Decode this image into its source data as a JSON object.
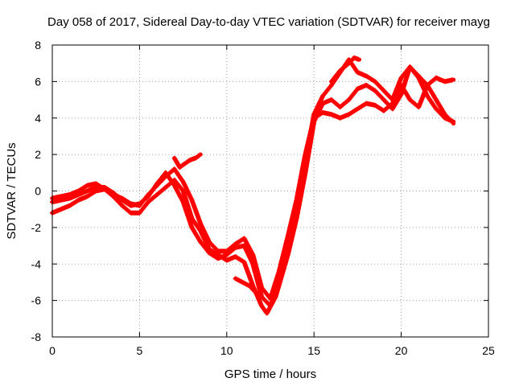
{
  "chart_data": {
    "type": "line",
    "title": "Day 058 of 2017, Sidereal Day-to-day VTEC variation (SDTVAR) for receiver mayg",
    "xlabel": "GPS time / hours",
    "ylabel": "SDTVAR / TECUs",
    "xlim": [
      0,
      25
    ],
    "ylim": [
      -8,
      8
    ],
    "xticks": [
      0,
      5,
      10,
      15,
      20,
      25
    ],
    "yticks": [
      -8,
      -6,
      -4,
      -2,
      0,
      2,
      4,
      6,
      8
    ],
    "grid": true,
    "color": "#ff0000",
    "marker": "plus",
    "series": [
      {
        "x": [
          0,
          0.5,
          1,
          1.5,
          2,
          2.5,
          3,
          3.5,
          4,
          4.5,
          5,
          5.5,
          6,
          6.5,
          7,
          7.5,
          8,
          8.5,
          9,
          9.5,
          10,
          10.5,
          11,
          11.5,
          12,
          12.3,
          12.8,
          13.5,
          14,
          14.5,
          15,
          15.5,
          16,
          16.5,
          17,
          17.5,
          18,
          18.5,
          19,
          19.5,
          20,
          20.5,
          21,
          21.5,
          22,
          22.5,
          23
        ],
        "y": [
          -1.2,
          -1,
          -0.8,
          -0.5,
          -0.3,
          0,
          0.1,
          -0.3,
          -0.8,
          -1.2,
          -1.2,
          -0.6,
          -0.2,
          0.2,
          0.6,
          0,
          -1.5,
          -2.2,
          -3.2,
          -3.5,
          -3.8,
          -3.6,
          -3.9,
          -5.2,
          -6.3,
          -6.7,
          -5.8,
          -3.5,
          -1.5,
          1,
          3.8,
          4.8,
          5,
          4.6,
          5,
          5.6,
          5.8,
          5.5,
          5,
          4.5,
          5.3,
          6.8,
          6.3,
          5.8,
          5,
          4.2,
          3.7
        ]
      },
      {
        "x": [
          0,
          0.5,
          1,
          1.5,
          2,
          2.5,
          3,
          3.5,
          4,
          4.5,
          5,
          5.5,
          6,
          6.5,
          7,
          7.5,
          8,
          8.5,
          9,
          9.5,
          10,
          10.5,
          11,
          11.5,
          12,
          12.5,
          13,
          13.5,
          14,
          14.5,
          15,
          15.5,
          16,
          16.5,
          17,
          17.5,
          18,
          18.5,
          19,
          19.5,
          20,
          20.5,
          21,
          21.5,
          22,
          22.5,
          23
        ],
        "y": [
          -0.6,
          -0.5,
          -0.4,
          -0.2,
          0,
          0.2,
          0.2,
          -0.1,
          -0.5,
          -0.8,
          -0.7,
          -0.3,
          0.4,
          1,
          0.3,
          -0.6,
          -2,
          -2.8,
          -3.4,
          -3.7,
          -3.5,
          -3.1,
          -3,
          -4,
          -5.8,
          -6.3,
          -5,
          -3.2,
          -1,
          1.5,
          4.2,
          5.2,
          5.8,
          6.5,
          7.2,
          6.5,
          6.3,
          6,
          5.5,
          5,
          6.2,
          6.8,
          6.2,
          5.2,
          4.5,
          4,
          3.8
        ]
      },
      {
        "x": [
          0,
          0.5,
          1,
          1.5,
          2,
          2.5,
          3,
          3.5,
          4,
          4.5,
          5,
          5.5,
          6,
          6.5,
          7,
          7.5,
          8,
          8.5,
          9,
          9.5,
          10,
          10.5,
          11,
          11.5,
          12,
          12.5,
          13,
          13.5,
          14,
          14.5,
          15,
          15.5,
          16,
          16.5,
          17,
          17.5,
          18,
          18.5,
          19,
          19.5,
          20,
          20.5,
          21,
          21.5,
          22,
          22.5,
          23
        ],
        "y": [
          -0.4,
          -0.3,
          -0.2,
          0,
          0.3,
          0.4,
          0.1,
          -0.2,
          -0.4,
          -0.7,
          -0.8,
          -0.2,
          0.3,
          0.8,
          1.2,
          0.5,
          -0.5,
          -1.8,
          -2.8,
          -3.3,
          -3.3,
          -2.9,
          -2.6,
          -3.5,
          -5.3,
          -5.9,
          -4.4,
          -2.5,
          -0.5,
          2,
          4,
          4.3,
          4.2,
          4,
          4.2,
          4.5,
          4.8,
          4.7,
          4.4,
          4.8,
          5.8,
          5,
          4.6,
          5.8,
          6.2,
          6,
          6.1
        ]
      },
      {
        "x": [
          7,
          7.3,
          7.6,
          7.9,
          8.2,
          8.5
        ],
        "y": [
          1.8,
          1.3,
          1.5,
          1.7,
          1.8,
          2
        ]
      },
      {
        "x": [
          10.5,
          10.9,
          11.3,
          11.7
        ],
        "y": [
          -4.8,
          -5,
          -5.2,
          -5.6
        ]
      },
      {
        "x": [
          16,
          16.5,
          17,
          17.3,
          17.6
        ],
        "y": [
          6,
          6.6,
          7,
          7.3,
          7.2
        ]
      }
    ]
  }
}
